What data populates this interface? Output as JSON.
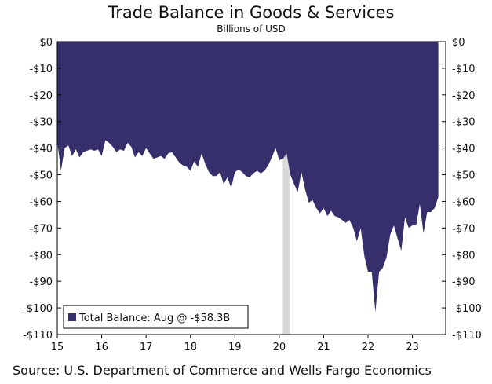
{
  "chart_data": {
    "type": "area",
    "title": "Trade Balance in Goods & Services",
    "subtitle": "Billions of USD",
    "source": "Source: U.S. Department of Commerce and Wells Fargo Economics",
    "xlim": [
      2015,
      2023.75
    ],
    "ylim": [
      -110,
      0
    ],
    "x_ticks": [
      {
        "value": 2015,
        "label": "15"
      },
      {
        "value": 2016,
        "label": "16"
      },
      {
        "value": 2017,
        "label": "17"
      },
      {
        "value": 2018,
        "label": "18"
      },
      {
        "value": 2019,
        "label": "19"
      },
      {
        "value": 2020,
        "label": "20"
      },
      {
        "value": 2021,
        "label": "21"
      },
      {
        "value": 2022,
        "label": "22"
      },
      {
        "value": 2023,
        "label": "23"
      }
    ],
    "y_ticks": [
      {
        "value": 0,
        "label": "$0"
      },
      {
        "value": -10,
        "label": "-$10"
      },
      {
        "value": -20,
        "label": "-$20"
      },
      {
        "value": -30,
        "label": "-$30"
      },
      {
        "value": -40,
        "label": "-$40"
      },
      {
        "value": -50,
        "label": "-$50"
      },
      {
        "value": -60,
        "label": "-$60"
      },
      {
        "value": -70,
        "label": "-$70"
      },
      {
        "value": -80,
        "label": "-$80"
      },
      {
        "value": -90,
        "label": "-$90"
      },
      {
        "value": -100,
        "label": "-$100"
      },
      {
        "value": -110,
        "label": "-$110"
      }
    ],
    "recession": {
      "start": 2020.08,
      "end": 2020.25
    },
    "legend": {
      "label": "Total Balance: Aug @ -$58.3B",
      "position": "bottom-left"
    },
    "series": [
      {
        "name": "Total Balance",
        "color": "#352f6b",
        "x": [
          2015.0,
          2015.083,
          2015.167,
          2015.25,
          2015.333,
          2015.417,
          2015.5,
          2015.583,
          2015.667,
          2015.75,
          2015.833,
          2015.917,
          2016.0,
          2016.083,
          2016.167,
          2016.25,
          2016.333,
          2016.417,
          2016.5,
          2016.583,
          2016.667,
          2016.75,
          2016.833,
          2016.917,
          2017.0,
          2017.083,
          2017.167,
          2017.25,
          2017.333,
          2017.417,
          2017.5,
          2017.583,
          2017.667,
          2017.75,
          2017.833,
          2017.917,
          2018.0,
          2018.083,
          2018.167,
          2018.25,
          2018.333,
          2018.417,
          2018.5,
          2018.583,
          2018.667,
          2018.75,
          2018.833,
          2018.917,
          2019.0,
          2019.083,
          2019.167,
          2019.25,
          2019.333,
          2019.417,
          2019.5,
          2019.583,
          2019.667,
          2019.75,
          2019.833,
          2019.917,
          2020.0,
          2020.083,
          2020.167,
          2020.25,
          2020.333,
          2020.417,
          2020.5,
          2020.583,
          2020.667,
          2020.75,
          2020.833,
          2020.917,
          2021.0,
          2021.083,
          2021.167,
          2021.25,
          2021.333,
          2021.417,
          2021.5,
          2021.583,
          2021.667,
          2021.75,
          2021.833,
          2021.917,
          2022.0,
          2022.083,
          2022.167,
          2022.25,
          2022.333,
          2022.417,
          2022.5,
          2022.583,
          2022.667,
          2022.75,
          2022.833,
          2022.917,
          2023.0,
          2023.083,
          2023.167,
          2023.25,
          2023.333,
          2023.417,
          2023.5,
          2023.583
        ],
        "values": [
          -37.5,
          -48.5,
          -40.0,
          -39.0,
          -43.0,
          -40.5,
          -43.5,
          -41.5,
          -41.0,
          -40.5,
          -41.0,
          -40.5,
          -43.0,
          -37.0,
          -38.0,
          -39.5,
          -41.5,
          -40.5,
          -41.0,
          -38.0,
          -39.5,
          -43.5,
          -41.5,
          -43.0,
          -40.0,
          -42.0,
          -44.0,
          -43.5,
          -43.0,
          -44.0,
          -42.0,
          -41.5,
          -43.5,
          -45.5,
          -46.5,
          -47.0,
          -48.5,
          -45.0,
          -47.0,
          -42.0,
          -46.0,
          -49.0,
          -50.5,
          -50.5,
          -49.0,
          -53.5,
          -51.0,
          -55.0,
          -49.0,
          -48.0,
          -49.0,
          -50.5,
          -51.0,
          -49.5,
          -48.5,
          -49.5,
          -48.5,
          -46.5,
          -43.5,
          -40.0,
          -44.5,
          -44.0,
          -42.0,
          -50.0,
          -53.5,
          -56.5,
          -49.0,
          -55.5,
          -60.5,
          -59.5,
          -62.5,
          -64.5,
          -62.5,
          -65.5,
          -63.5,
          -65.5,
          -66.0,
          -67.0,
          -68.0,
          -67.0,
          -70.0,
          -75.0,
          -70.0,
          -80.5,
          -86.5,
          -86.5,
          -101.5,
          -86.5,
          -85.0,
          -81.0,
          -72.5,
          -69.0,
          -74.0,
          -78.5,
          -66.0,
          -70.0,
          -69.0,
          -69.0,
          -61.0,
          -72.0,
          -64.0,
          -64.0,
          -62.5,
          -58.3
        ]
      }
    ]
  }
}
